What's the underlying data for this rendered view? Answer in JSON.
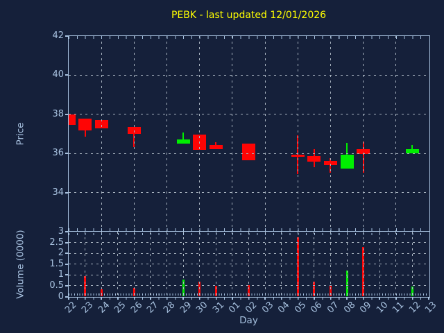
{
  "title": {
    "text": "PEBK - last updated 12/01/2026"
  },
  "colors": {
    "background": "#15203A",
    "frame": "#A8C2E0",
    "tick_label": "#A8C2E0",
    "grid": "#A9B4C0",
    "title": "#FFFF00",
    "up": "#00EE00",
    "down": "#FF0505"
  },
  "chart_data": {
    "type": "candlestick_with_volume",
    "symbol": "PEBK",
    "title": "PEBK - last updated 12/01/2026",
    "xlabel": "Day",
    "ylabel_price": "Price",
    "ylabel_volume": "Volume (0000)",
    "x_categories": [
      "22",
      "23",
      "24",
      "25",
      "26",
      "27",
      "28",
      "29",
      "30",
      "31",
      "01",
      "02",
      "03",
      "04",
      "05",
      "06",
      "07",
      "08",
      "09",
      "10",
      "11",
      "12",
      "13"
    ],
    "price_ylim": [
      32,
      42
    ],
    "price_yticks": [
      42,
      40,
      38,
      36,
      34
    ],
    "volume_ylim": [
      0,
      3
    ],
    "volume_yticks": [
      3,
      2.5,
      2,
      1.5,
      1,
      0.5,
      0
    ],
    "grid": true,
    "price_xgrid_days": [
      "24",
      "26",
      "28",
      "30",
      "01",
      "03",
      "05",
      "07",
      "09",
      "11"
    ],
    "price_hgrid_values": [
      34,
      36,
      38,
      40
    ],
    "volume_hgrid_values": [
      0.5,
      1,
      1.5,
      2,
      2.5
    ],
    "series": [
      {
        "day": "22",
        "open": 38.0,
        "high": 38.0,
        "low": 37.45,
        "close": 37.45,
        "volume": null
      },
      {
        "day": "23",
        "open": 37.78,
        "high": 37.78,
        "low": 36.86,
        "close": 37.19,
        "volume": 0.95
      },
      {
        "day": "24",
        "open": 37.72,
        "high": 37.72,
        "low": 37.28,
        "close": 37.28,
        "volume": 0.35
      },
      {
        "day": "26",
        "open": 37.35,
        "high": 37.35,
        "low": 36.33,
        "close": 37.0,
        "volume": 0.4
      },
      {
        "day": "29",
        "open": 36.5,
        "high": 37.07,
        "low": 36.5,
        "close": 36.71,
        "volume": 0.8
      },
      {
        "day": "30",
        "open": 36.95,
        "high": 36.95,
        "low": 36.18,
        "close": 36.18,
        "volume": 0.7
      },
      {
        "day": "31",
        "open": 36.45,
        "high": 36.57,
        "low": 36.21,
        "close": 36.21,
        "volume": 0.5
      },
      {
        "day": "02",
        "open": 36.5,
        "high": 36.5,
        "low": 35.65,
        "close": 35.65,
        "volume": 0.52
      },
      {
        "day": "05",
        "open": 35.95,
        "high": 36.93,
        "low": 34.95,
        "close": 35.82,
        "volume": 2.75
      },
      {
        "day": "06",
        "open": 35.88,
        "high": 36.22,
        "low": 35.31,
        "close": 35.59,
        "volume": 0.68
      },
      {
        "day": "07",
        "open": 35.62,
        "high": 35.76,
        "low": 35.02,
        "close": 35.4,
        "volume": 0.53
      },
      {
        "day": "08",
        "open": 35.23,
        "high": 36.54,
        "low": 35.23,
        "close": 35.94,
        "volume": 1.2
      },
      {
        "day": "09",
        "open": 36.21,
        "high": 36.62,
        "low": 35.02,
        "close": 35.97,
        "volume": 2.3
      },
      {
        "day": "12",
        "open": 36.0,
        "high": 36.45,
        "low": 36.0,
        "close": 36.22,
        "volume": 0.45
      }
    ]
  }
}
